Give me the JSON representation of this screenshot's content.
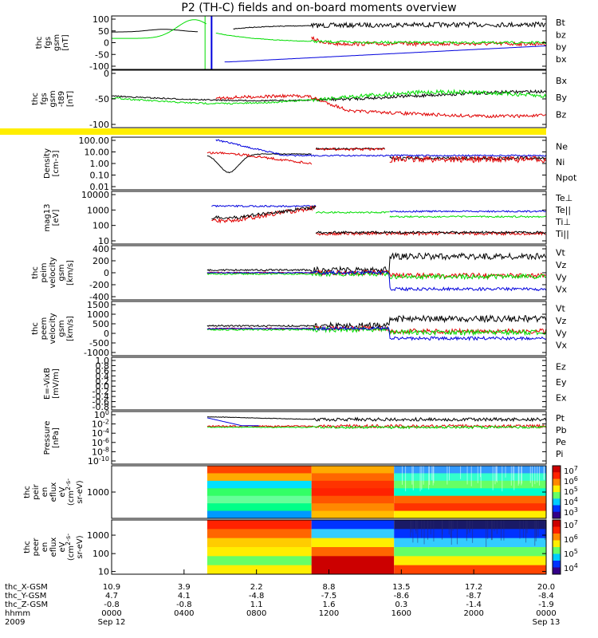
{
  "title": "P2 (TH-C) fields and on-board moments overview",
  "colors": {
    "black": "#000000",
    "red": "#e00000",
    "green": "#00dd00",
    "blue": "#0000dd",
    "yellow": "#ffee00"
  },
  "x_axis": {
    "ticks": [
      "0000",
      "0400",
      "0800",
      "1200",
      "1600",
      "2000",
      "0000"
    ],
    "row_labels": [
      "thc_X-GSM",
      "thc_Y-GSM",
      "thc_Z-GSM",
      "hhmm",
      "2009"
    ],
    "columns": [
      [
        "10.9",
        "4.7",
        "-0.8",
        "0000",
        "Sep 12"
      ],
      [
        "3.9",
        "4.1",
        "-0.8",
        "0400",
        ""
      ],
      [
        "2.2",
        "-4.8",
        "1.1",
        "0800",
        ""
      ],
      [
        "8.8",
        "-7.5",
        "1.6",
        "1200",
        ""
      ],
      [
        "13.5",
        "-8.6",
        "0.3",
        "1600",
        ""
      ],
      [
        "17.2",
        "-8.7",
        "-1.4",
        "2000",
        ""
      ],
      [
        "20.0",
        "-8.4",
        "-1.9",
        "0000",
        "Sep 13"
      ]
    ]
  },
  "chart_data": [
    {
      "type": "line",
      "ytitle": [
        "thc",
        "fgs",
        "gsm",
        "[nT]"
      ],
      "ylim": [
        -100,
        100
      ],
      "yticks": [
        "100",
        "50",
        "0",
        "-50",
        "-100"
      ],
      "series": [
        {
          "name": "Bt",
          "color": "#000000"
        },
        {
          "name": "bz",
          "color": "#e00000"
        },
        {
          "name": "by",
          "color": "#00dd00"
        },
        {
          "name": "bx",
          "color": "#0000dd"
        }
      ]
    },
    {
      "type": "line",
      "ytitle": [
        "thc",
        "fgs",
        "gsm",
        "-t89",
        "[nT]"
      ],
      "ylim": [
        -125,
        25
      ],
      "yticks": [
        "0",
        "-50",
        "-100"
      ],
      "series": [
        {
          "name": "Bx",
          "color": "#000000"
        },
        {
          "name": "By",
          "color": "#00dd00"
        },
        {
          "name": "Bz",
          "color": "#e00000"
        }
      ]
    },
    {
      "type": "line",
      "ytitle": [
        "Density",
        "[cm-3]"
      ],
      "ylim": [
        0.01,
        100
      ],
      "yscale": "log",
      "yticks": [
        "100.00",
        "10.00",
        "1.00",
        "0.10",
        "0.01"
      ],
      "series": [
        {
          "name": "Ne",
          "color": "#e00000"
        },
        {
          "name": "Ni",
          "color": "#000000"
        },
        {
          "name": "Npot",
          "color": "#0000dd"
        }
      ]
    },
    {
      "type": "line",
      "ytitle": [
        "mag13",
        "[eV]"
      ],
      "ylim": [
        10,
        10000
      ],
      "yscale": "log",
      "yticks": [
        "10000",
        "1000",
        "100",
        "10"
      ],
      "series": [
        {
          "name": "Te⊥",
          "color": "#e00000"
        },
        {
          "name": "Te||",
          "color": "#000000"
        },
        {
          "name": "Ti⊥",
          "color": "#000000"
        },
        {
          "name": "Ti||",
          "color": "#00dd00"
        }
      ]
    },
    {
      "type": "line",
      "ytitle": [
        "thc",
        "peim",
        "velocity",
        "gsm",
        "[km/s]"
      ],
      "ylim": [
        -400,
        400
      ],
      "yticks": [
        "400",
        "200",
        "0",
        "-200",
        "-400"
      ],
      "series": [
        {
          "name": "Vt",
          "color": "#000000"
        },
        {
          "name": "Vz",
          "color": "#e00000"
        },
        {
          "name": "Vy",
          "color": "#00dd00"
        },
        {
          "name": "Vx",
          "color": "#0000dd"
        }
      ]
    },
    {
      "type": "line",
      "ytitle": [
        "thc",
        "peem",
        "velocity",
        "gsm",
        "[km/s]"
      ],
      "ylim": [
        -1000,
        1500
      ],
      "yticks": [
        "1500",
        "1000",
        "500",
        "0",
        "-500",
        "-1000"
      ],
      "series": [
        {
          "name": "Vt",
          "color": "#000000"
        },
        {
          "name": "Vz",
          "color": "#e00000"
        },
        {
          "name": "Vy",
          "color": "#00dd00"
        },
        {
          "name": "Vx",
          "color": "#0000dd"
        }
      ]
    },
    {
      "type": "line",
      "ytitle": [
        "E=-VixB",
        "[mV/m]"
      ],
      "ylim": [
        -0.8,
        1.0
      ],
      "yticks": [
        "1.0",
        "0.8",
        "0.6",
        "0.4",
        "0.2",
        "0.0",
        "-0.2",
        "-0.4",
        "-0.6",
        "-0.8"
      ],
      "series": [
        {
          "name": "Ez",
          "color": "#e00000"
        },
        {
          "name": "Ey",
          "color": "#00dd00"
        },
        {
          "name": "Ex",
          "color": "#0000dd"
        }
      ]
    },
    {
      "type": "line",
      "ytitle": [
        "Pressure",
        "[nPa]"
      ],
      "yscale": "log",
      "yticks": [
        "10^0",
        "10^-2",
        "10^-4",
        "10^-6",
        "10^-8",
        "10^-10"
      ],
      "series": [
        {
          "name": "Pt",
          "color": "#000000"
        },
        {
          "name": "Pb",
          "color": "#e00000"
        },
        {
          "name": "Pe",
          "color": "#00dd00"
        },
        {
          "name": "Pi",
          "color": "#0000dd"
        }
      ]
    },
    {
      "type": "heatmap",
      "ytitle": [
        "thc",
        "peir",
        "en",
        "eflux",
        "eV",
        "(cm^2-s-",
        "sr-eV)"
      ],
      "yscale": "log",
      "yticks": [
        "1000"
      ],
      "colorbar": {
        "ticks": [
          "10^7",
          "10^6",
          "10^5",
          "10^4",
          "10^3"
        ]
      }
    },
    {
      "type": "heatmap",
      "ytitle": [
        "thc",
        "peer",
        "en",
        "eflux",
        "eV",
        "(cm^2-s-",
        "sr-eV)"
      ],
      "yscale": "log",
      "yticks": [
        "1000",
        "100",
        "10"
      ],
      "colorbar": {
        "ticks": [
          "10^7",
          "10^6",
          "10^5",
          "10^4"
        ]
      }
    }
  ]
}
